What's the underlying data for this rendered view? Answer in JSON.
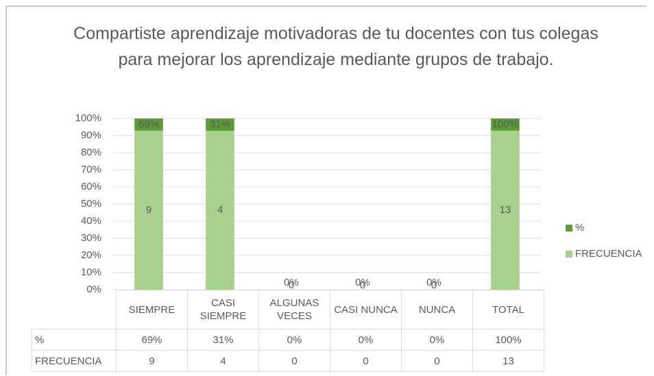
{
  "chart_data": {
    "type": "stacked_percent_bar",
    "title": "Compartiste aprendizaje motivadoras de tu docentes con tus colegas para mejorar los aprendizaje mediante grupos de trabajo.",
    "categories": [
      "SIEMPRE",
      "CASI SIEMPRE",
      "ALGUNAS VECES",
      "CASI NUNCA",
      "NUNCA",
      "TOTAL"
    ],
    "series": [
      {
        "name": "FRECUENCIA",
        "color": "#a9d18e",
        "values": [
          9,
          4,
          0,
          0,
          0,
          13
        ]
      },
      {
        "name": "%",
        "color": "#5b9b3a",
        "values": [
          0.69,
          0.31,
          0,
          0,
          0,
          1
        ],
        "value_labels": [
          "69%",
          "31%",
          "0%",
          "0%",
          "0%",
          "100%"
        ]
      }
    ],
    "ylim": [
      0,
      100
    ],
    "yticks": [
      {
        "value": 0,
        "label": "0%"
      },
      {
        "value": 10,
        "label": "10%"
      },
      {
        "value": 20,
        "label": "20%"
      },
      {
        "value": 30,
        "label": "30%"
      },
      {
        "value": 40,
        "label": "40%"
      },
      {
        "value": 50,
        "label": "50%"
      },
      {
        "value": 60,
        "label": "60%"
      },
      {
        "value": 70,
        "label": "70%"
      },
      {
        "value": 80,
        "label": "80%"
      },
      {
        "value": 90,
        "label": "90%"
      },
      {
        "value": 100,
        "label": "100%"
      }
    ],
    "grid": true,
    "legend": "right"
  }
}
